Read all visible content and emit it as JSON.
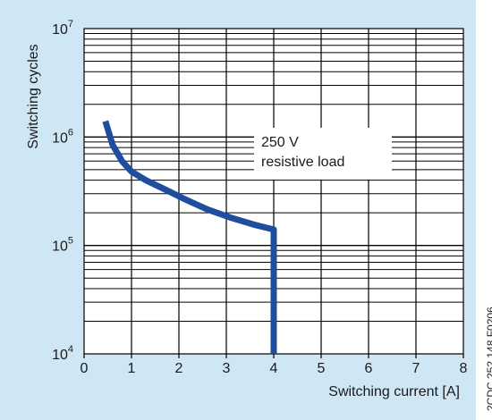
{
  "chart_data": {
    "type": "line",
    "ylabel": "Switching cycles",
    "xlabel": "Switching current [A]",
    "x_ticks": [
      "0",
      "1",
      "2",
      "3",
      "4",
      "5",
      "6",
      "7",
      "8"
    ],
    "y_ticks": [
      {
        "base": "10",
        "exp": "4"
      },
      {
        "base": "10",
        "exp": "5"
      },
      {
        "base": "10",
        "exp": "6"
      },
      {
        "base": "10",
        "exp": "7"
      }
    ],
    "xlim": [
      0,
      8
    ],
    "ylim": [
      10000,
      10000000
    ],
    "y_scale": "log",
    "grid": true,
    "annotation": [
      "250 V",
      "resistive load"
    ],
    "series": [
      {
        "color": "#1f4e9e",
        "points": [
          [
            0.45,
            1400000
          ],
          [
            0.6,
            850000
          ],
          [
            0.8,
            600000
          ],
          [
            1.0,
            480000
          ],
          [
            1.3,
            400000
          ],
          [
            1.7,
            330000
          ],
          [
            2.1,
            270000
          ],
          [
            2.6,
            215000
          ],
          [
            3.1,
            180000
          ],
          [
            3.6,
            155000
          ],
          [
            4.0,
            140000
          ],
          [
            4.0,
            10000
          ]
        ]
      }
    ]
  },
  "side_code": "2CDC 252 148 F0206",
  "colors": {
    "panel": "#cfe6f5",
    "curve": "#1f4e9e",
    "grid": "#000000"
  }
}
